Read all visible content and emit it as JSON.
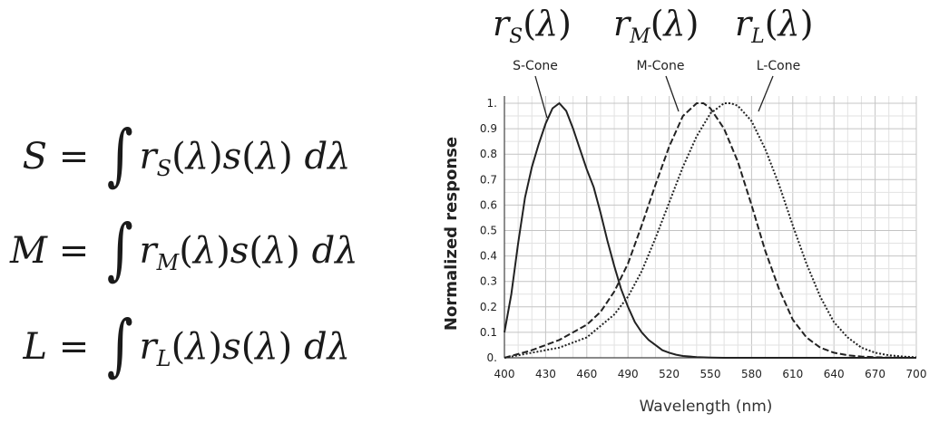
{
  "equations": [
    {
      "lhs": "S",
      "cone": "S"
    },
    {
      "lhs": "M",
      "cone": "M"
    },
    {
      "lhs": "L",
      "cone": "L"
    }
  ],
  "math_labels": [
    {
      "sub": "S"
    },
    {
      "sub": "M"
    },
    {
      "sub": "L"
    }
  ],
  "chart_data": {
    "type": "line",
    "xlabel": "Wavelength (nm)",
    "ylabel": "Normalized response",
    "xlim": [
      400,
      700
    ],
    "ylim": [
      0,
      1
    ],
    "xticks": [
      "400",
      "430",
      "460",
      "490",
      "520",
      "550",
      "580",
      "610",
      "640",
      "670",
      "700"
    ],
    "yticks": [
      "0.",
      "0.1",
      "0.2",
      "0.3",
      "0.4",
      "0.5",
      "0.6",
      "0.7",
      "0.8",
      "0.9",
      "1."
    ],
    "grid": true,
    "series": [
      {
        "name": "S-Cone",
        "style": "solid",
        "x": [
          400,
          405,
          410,
          415,
          420,
          425,
          430,
          435,
          440,
          445,
          450,
          455,
          460,
          465,
          470,
          475,
          480,
          485,
          490,
          495,
          500,
          505,
          510,
          515,
          520,
          525,
          530,
          540,
          550,
          560,
          580,
          600,
          700
        ],
        "y": [
          0.1,
          0.25,
          0.45,
          0.63,
          0.75,
          0.84,
          0.92,
          0.98,
          1.0,
          0.97,
          0.9,
          0.82,
          0.74,
          0.67,
          0.57,
          0.46,
          0.36,
          0.27,
          0.2,
          0.14,
          0.1,
          0.07,
          0.05,
          0.03,
          0.02,
          0.012,
          0.007,
          0.003,
          0.001,
          0.0,
          0.0,
          0.0,
          0.0
        ]
      },
      {
        "name": "M-Cone",
        "style": "dashed",
        "x": [
          400,
          420,
          440,
          460,
          470,
          480,
          490,
          500,
          510,
          520,
          530,
          540,
          545,
          550,
          560,
          570,
          580,
          590,
          600,
          610,
          620,
          630,
          640,
          650,
          660,
          670,
          680,
          700
        ],
        "y": [
          0.0,
          0.03,
          0.07,
          0.13,
          0.18,
          0.26,
          0.37,
          0.52,
          0.68,
          0.83,
          0.95,
          1.0,
          1.0,
          0.98,
          0.9,
          0.77,
          0.6,
          0.42,
          0.27,
          0.15,
          0.08,
          0.04,
          0.02,
          0.01,
          0.005,
          0.002,
          0.001,
          0.0
        ]
      },
      {
        "name": "L-Cone",
        "style": "dotted",
        "x": [
          400,
          420,
          440,
          460,
          480,
          490,
          500,
          510,
          520,
          530,
          540,
          550,
          560,
          565,
          570,
          580,
          590,
          600,
          610,
          620,
          630,
          640,
          650,
          660,
          670,
          680,
          690,
          700
        ],
        "y": [
          0.0,
          0.02,
          0.04,
          0.08,
          0.17,
          0.24,
          0.34,
          0.47,
          0.61,
          0.75,
          0.87,
          0.96,
          1.0,
          1.0,
          0.99,
          0.93,
          0.82,
          0.68,
          0.52,
          0.37,
          0.24,
          0.14,
          0.08,
          0.04,
          0.02,
          0.01,
          0.005,
          0.002
        ]
      }
    ]
  }
}
